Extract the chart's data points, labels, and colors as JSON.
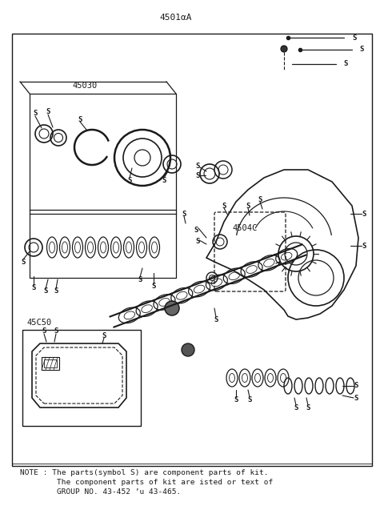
{
  "title": "4501αA",
  "note_line1": "NOTE : The parts(symbol S) are component parts of kit.",
  "note_line2": "        The component parts of kit are isted or text of",
  "note_line3": "        GROUP NO. 43-452 ’u 43-465.",
  "label_45030": "45030",
  "label_45040": "4504C",
  "label_45050": "45C50",
  "bg_color": "#ffffff",
  "line_color": "#1a1a1a",
  "label_S": "S"
}
